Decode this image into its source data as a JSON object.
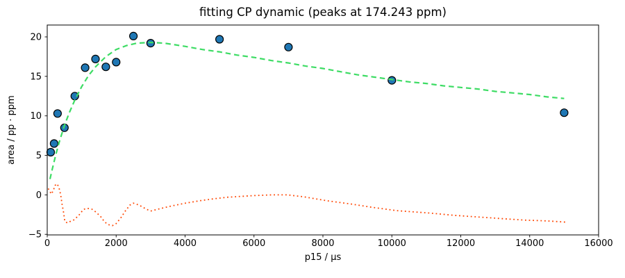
{
  "chart_data": {
    "type": "scatter",
    "title": "fitting CP dynamic (peaks at 174.243 ppm)",
    "xlabel": "p15 / µs",
    "ylabel": "area / pp · ppm",
    "xlim": [
      0,
      16000
    ],
    "ylim": [
      -5.07,
      21.5
    ],
    "grid": false,
    "legend": "none",
    "background": "#ffffff",
    "axis_color": "#000000",
    "x_ticks": [
      0,
      2000,
      4000,
      6000,
      8000,
      10000,
      12000,
      14000,
      16000
    ],
    "x_tick_labels": [
      "0",
      "2000",
      "4000",
      "6000",
      "8000",
      "10000",
      "12000",
      "14000",
      "16000"
    ],
    "y_ticks": [
      -5,
      0,
      5,
      10,
      15,
      20
    ],
    "y_tick_labels": [
      "−5",
      "0",
      "5",
      "10",
      "15",
      "20"
    ],
    "series": [
      {
        "name": "residual-curve",
        "type": "line",
        "style": "dotted",
        "color": "#ff4500",
        "points": [
          [
            30,
            0.8
          ],
          [
            75,
            0.45
          ],
          [
            120,
            0.1
          ],
          [
            175,
            0.55
          ],
          [
            230,
            1.2
          ],
          [
            290,
            1.4
          ],
          [
            345,
            0.85
          ],
          [
            390,
            0.0
          ],
          [
            430,
            -1.15
          ],
          [
            480,
            -2.35
          ],
          [
            510,
            -3.35
          ],
          [
            580,
            -3.55
          ],
          [
            650,
            -3.4
          ],
          [
            780,
            -3.15
          ],
          [
            915,
            -2.6
          ],
          [
            1050,
            -1.85
          ],
          [
            1150,
            -1.7
          ],
          [
            1290,
            -1.8
          ],
          [
            1420,
            -2.2
          ],
          [
            1560,
            -2.8
          ],
          [
            1660,
            -3.4
          ],
          [
            1760,
            -3.75
          ],
          [
            1890,
            -3.9
          ],
          [
            1995,
            -3.65
          ],
          [
            2130,
            -2.95
          ],
          [
            2265,
            -2.05
          ],
          [
            2400,
            -1.3
          ],
          [
            2500,
            -1.05
          ],
          [
            2665,
            -1.3
          ],
          [
            2870,
            -1.8
          ],
          [
            3000,
            -2.05
          ],
          [
            3270,
            -1.75
          ],
          [
            3610,
            -1.4
          ],
          [
            4015,
            -1.05
          ],
          [
            4420,
            -0.75
          ],
          [
            4820,
            -0.5
          ],
          [
            5225,
            -0.3
          ],
          [
            5965,
            -0.1
          ],
          [
            6505,
            0.0
          ],
          [
            6975,
            0.0
          ],
          [
            7450,
            -0.25
          ],
          [
            8120,
            -0.75
          ],
          [
            8795,
            -1.15
          ],
          [
            9470,
            -1.6
          ],
          [
            10140,
            -2.0
          ],
          [
            11085,
            -2.3
          ],
          [
            11825,
            -2.6
          ],
          [
            12500,
            -2.8
          ],
          [
            13170,
            -3.0
          ],
          [
            13845,
            -3.2
          ],
          [
            14520,
            -3.3
          ],
          [
            15045,
            -3.45
          ]
        ]
      },
      {
        "name": "data-points",
        "type": "scatter",
        "marker": "circle",
        "color": "#1f77b4",
        "edge_color": "#000000",
        "points": [
          [
            100,
            5.4
          ],
          [
            200,
            6.5
          ],
          [
            300,
            10.3
          ],
          [
            500,
            8.5
          ],
          [
            800,
            12.5
          ],
          [
            1100,
            16.1
          ],
          [
            1400,
            17.2
          ],
          [
            1700,
            16.2
          ],
          [
            2000,
            16.8
          ],
          [
            2500,
            20.1
          ],
          [
            3000,
            19.2
          ],
          [
            5000,
            19.7
          ],
          [
            7000,
            18.7
          ],
          [
            10000,
            14.5
          ],
          [
            15000,
            10.4
          ]
        ]
      },
      {
        "name": "fit-curve",
        "type": "line",
        "style": "dashed",
        "color": "#3ddc64",
        "points": [
          [
            80,
            2.0
          ],
          [
            150,
            3.3
          ],
          [
            250,
            5.1
          ],
          [
            350,
            6.7
          ],
          [
            500,
            8.8
          ],
          [
            650,
            10.5
          ],
          [
            800,
            12.0
          ],
          [
            1000,
            13.7
          ],
          [
            1200,
            15.1
          ],
          [
            1400,
            16.2
          ],
          [
            1700,
            17.5
          ],
          [
            2000,
            18.4
          ],
          [
            2300,
            18.9
          ],
          [
            2600,
            19.2
          ],
          [
            3000,
            19.3
          ],
          [
            3400,
            19.2
          ],
          [
            4000,
            18.8
          ],
          [
            4500,
            18.4
          ],
          [
            5000,
            18.1
          ],
          [
            5500,
            17.7
          ],
          [
            6000,
            17.4
          ],
          [
            6500,
            17.0
          ],
          [
            7000,
            16.7
          ],
          [
            7500,
            16.3
          ],
          [
            8000,
            16.0
          ],
          [
            8500,
            15.6
          ],
          [
            9000,
            15.2
          ],
          [
            9500,
            14.9
          ],
          [
            10000,
            14.6
          ],
          [
            10500,
            14.3
          ],
          [
            11000,
            14.1
          ],
          [
            11500,
            13.8
          ],
          [
            12000,
            13.6
          ],
          [
            12500,
            13.4
          ],
          [
            13000,
            13.1
          ],
          [
            13500,
            12.9
          ],
          [
            14000,
            12.7
          ],
          [
            14500,
            12.4
          ],
          [
            15000,
            12.2
          ]
        ]
      }
    ]
  }
}
